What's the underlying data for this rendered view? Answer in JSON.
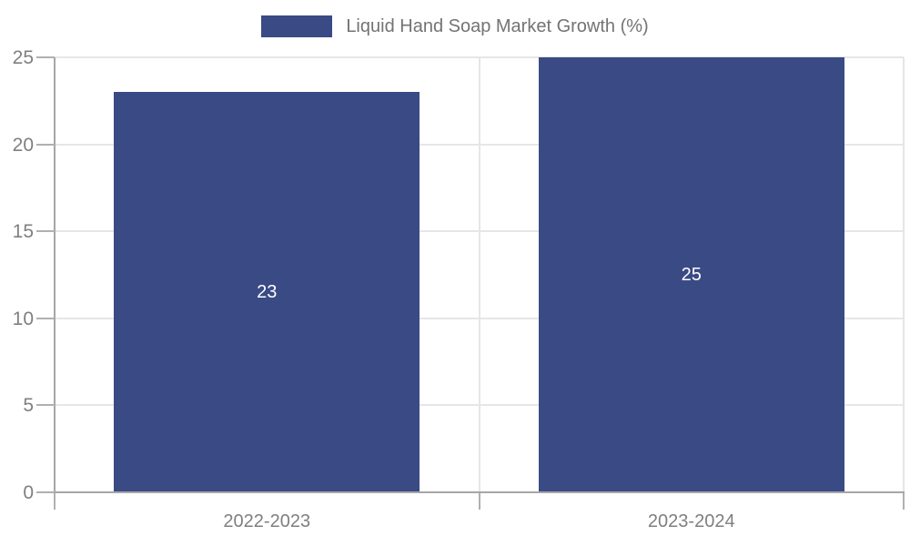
{
  "chart_data": {
    "type": "bar",
    "title": "",
    "legend_label": "Liquid Hand Soap Market Growth (%)",
    "categories": [
      "2022-2023",
      "2023-2024"
    ],
    "values": [
      23,
      25
    ],
    "data_labels": [
      "23",
      "25"
    ],
    "xlabel": "",
    "ylabel": "",
    "ylim": [
      0,
      25
    ],
    "yticks": [
      0,
      5,
      10,
      15,
      20,
      25
    ],
    "grid": true,
    "legend_position": "top-center",
    "bar_width_fraction": 0.72
  },
  "colors": {
    "bar_fill": "#3a4a85",
    "bar_label": "#ffffff",
    "gridline": "#e6e6e6",
    "axis_spine": "#a6a6a6",
    "tick_mark": "#b0b0b0",
    "tick_label": "#7f7f7f",
    "legend_text": "#737373",
    "background": "#ffffff"
  }
}
